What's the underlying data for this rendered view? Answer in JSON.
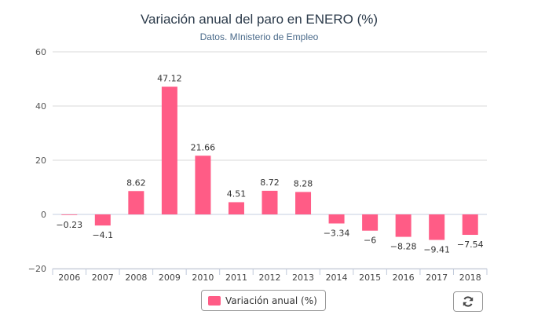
{
  "chart_data": {
    "type": "bar",
    "title": "Variación anual del paro en ENERO (%)",
    "subtitle": "Datos. MInisterio de Empleo",
    "categories": [
      "2006",
      "2007",
      "2008",
      "2009",
      "2010",
      "2011",
      "2012",
      "2013",
      "2014",
      "2015",
      "2016",
      "2017",
      "2018"
    ],
    "series": [
      {
        "name": "Variación anual (%)",
        "values": [
          -0.23,
          -4.1,
          8.62,
          47.12,
          21.66,
          4.51,
          8.72,
          8.28,
          -3.34,
          -6,
          -8.28,
          -9.41,
          -7.54
        ],
        "labels": [
          "−0.23",
          "−4.1",
          "8.62",
          "47.12",
          "21.66",
          "4.51",
          "8.72",
          "8.28",
          "−3.34",
          "−6",
          "−8.28",
          "−9.41",
          "−7.54"
        ],
        "color": "#ff5c86"
      }
    ],
    "ylim": [
      -20,
      60
    ],
    "yticks": [
      -20,
      0,
      20,
      40,
      60
    ],
    "ytick_labels": [
      "−20",
      "0",
      "20",
      "40",
      "60"
    ],
    "grid": true,
    "legend_position": "bottom"
  },
  "controls": {
    "reset_icon": "refresh-icon"
  }
}
